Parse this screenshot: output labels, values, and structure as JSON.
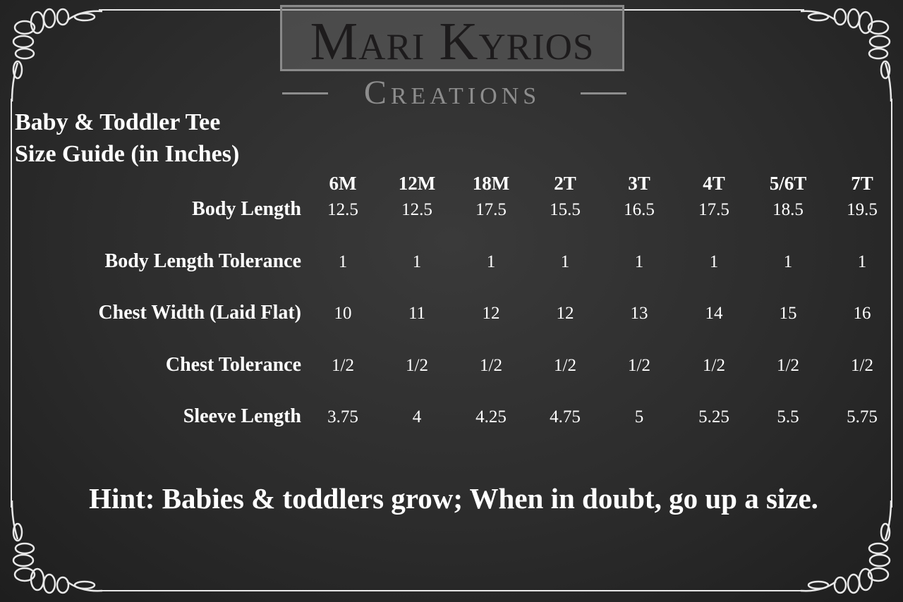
{
  "logo": {
    "brand": "Mari Kyrios",
    "sub": "Creations"
  },
  "title": {
    "line1": "Baby & Toddler Tee",
    "line2": "Size Guide (in Inches)"
  },
  "table": {
    "sizes": [
      "6M",
      "12M",
      "18M",
      "2T",
      "3T",
      "4T",
      "5/6T",
      "7T"
    ],
    "rows": [
      {
        "label": "Body Length",
        "values": [
          "12.5",
          "12.5",
          "17.5",
          "15.5",
          "16.5",
          "17.5",
          "18.5",
          "19.5"
        ]
      },
      {
        "label": "Body Length Tolerance",
        "values": [
          "1",
          "1",
          "1",
          "1",
          "1",
          "1",
          "1",
          "1"
        ]
      },
      {
        "label": "Chest Width (Laid Flat)",
        "values": [
          "10",
          "11",
          "12",
          "12",
          "13",
          "14",
          "15",
          "16"
        ]
      },
      {
        "label": "Chest Tolerance",
        "values": [
          "1/2",
          "1/2",
          "1/2",
          "1/2",
          "1/2",
          "1/2",
          "1/2",
          "1/2"
        ]
      },
      {
        "label": "Sleeve Length",
        "values": [
          "3.75",
          "4",
          "4.25",
          "4.75",
          "5",
          "5.25",
          "5.5",
          "5.75"
        ]
      }
    ]
  },
  "hint": "Hint:  Babies & toddlers grow; When in doubt, go up a size.",
  "colors": {
    "background": "#2b2b2b",
    "text": "#ffffff",
    "logo_dark": "#1d1b1c",
    "logo_gray": "#8d8d8d"
  }
}
